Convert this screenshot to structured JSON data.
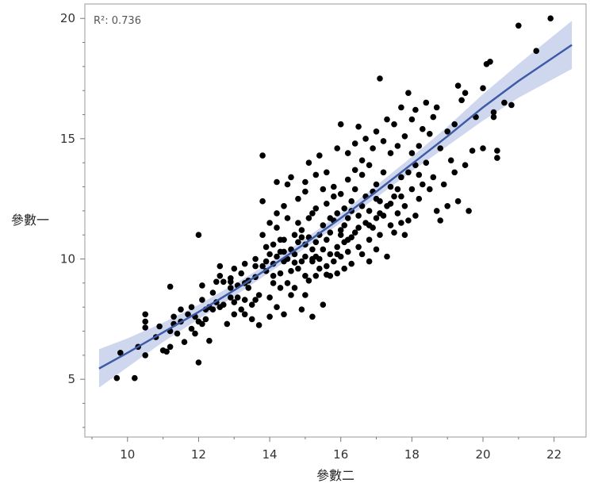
{
  "chart_data": {
    "type": "scatter",
    "title": "",
    "xlabel": "參數二",
    "ylabel": "參數一",
    "xlim": [
      8.8,
      22.9
    ],
    "ylim": [
      2.6,
      20.6
    ],
    "xticks": [
      10,
      12,
      14,
      16,
      18,
      20,
      22
    ],
    "yticks": [
      5,
      10,
      15,
      20
    ],
    "grid": false,
    "legend": "none",
    "annotation": "R²: 0.736",
    "colors": {
      "points": "#000000",
      "fit_line": "#3d5ba6",
      "band": "#c5d0ea",
      "frame": "#999999"
    },
    "fit": {
      "x": [
        9.2,
        10,
        11,
        12,
        13,
        14,
        15,
        16,
        17,
        18,
        19,
        20,
        21,
        22.5
      ],
      "y": [
        5.45,
        6.1,
        6.95,
        7.8,
        8.7,
        9.65,
        10.65,
        11.7,
        12.8,
        13.95,
        15.1,
        16.3,
        17.4,
        18.9
      ],
      "lower": [
        4.65,
        5.5,
        6.55,
        7.5,
        8.45,
        9.45,
        10.45,
        11.5,
        12.55,
        13.65,
        14.7,
        15.75,
        16.7,
        17.9
      ],
      "upper": [
        6.25,
        6.7,
        7.35,
        8.1,
        8.95,
        9.85,
        10.85,
        11.9,
        13.05,
        14.25,
        15.5,
        16.85,
        18.1,
        19.9
      ]
    },
    "points": [
      [
        9.7,
        5.05
      ],
      [
        10.2,
        5.05
      ],
      [
        9.8,
        6.1
      ],
      [
        10.3,
        6.35
      ],
      [
        10.5,
        6.0
      ],
      [
        10.5,
        7.15
      ],
      [
        10.5,
        7.4
      ],
      [
        10.5,
        7.7
      ],
      [
        10.8,
        6.75
      ],
      [
        10.9,
        7.2
      ],
      [
        11.0,
        6.2
      ],
      [
        11.1,
        6.15
      ],
      [
        11.2,
        7.0
      ],
      [
        11.2,
        6.35
      ],
      [
        11.3,
        7.6
      ],
      [
        11.3,
        7.3
      ],
      [
        11.2,
        8.85
      ],
      [
        11.4,
        6.9
      ],
      [
        11.5,
        7.4
      ],
      [
        11.5,
        7.9
      ],
      [
        11.6,
        6.55
      ],
      [
        11.7,
        7.7
      ],
      [
        11.8,
        7.1
      ],
      [
        11.8,
        8.0
      ],
      [
        11.9,
        6.9
      ],
      [
        12.0,
        7.4
      ],
      [
        12.0,
        5.7
      ],
      [
        12.0,
        11.0
      ],
      [
        12.1,
        7.3
      ],
      [
        12.1,
        8.3
      ],
      [
        12.1,
        8.9
      ],
      [
        12.2,
        7.5
      ],
      [
        12.3,
        6.6
      ],
      [
        12.3,
        8.0
      ],
      [
        12.4,
        7.9
      ],
      [
        12.4,
        8.6
      ],
      [
        12.5,
        9.05
      ],
      [
        12.5,
        8.2
      ],
      [
        12.6,
        9.3
      ],
      [
        12.6,
        9.7
      ],
      [
        12.7,
        8.1
      ],
      [
        12.7,
        9.05
      ],
      [
        12.8,
        7.3
      ],
      [
        12.9,
        8.4
      ],
      [
        12.9,
        8.8
      ],
      [
        12.9,
        9.2
      ],
      [
        13.0,
        8.2
      ],
      [
        13.0,
        9.6
      ],
      [
        13.0,
        7.7
      ],
      [
        13.1,
        8.9
      ],
      [
        13.1,
        8.4
      ],
      [
        13.2,
        7.9
      ],
      [
        13.2,
        9.4
      ],
      [
        13.3,
        9.8
      ],
      [
        13.3,
        7.7
      ],
      [
        13.3,
        8.3
      ],
      [
        13.4,
        8.8
      ],
      [
        13.4,
        9.1
      ],
      [
        13.5,
        7.5
      ],
      [
        13.5,
        8.1
      ],
      [
        13.6,
        9.25
      ],
      [
        13.6,
        10.0
      ],
      [
        13.6,
        9.7
      ],
      [
        13.7,
        8.5
      ],
      [
        13.7,
        7.25
      ],
      [
        13.8,
        9.7
      ],
      [
        13.8,
        11.0
      ],
      [
        13.8,
        12.4
      ],
      [
        13.8,
        14.3
      ],
      [
        13.9,
        10.5
      ],
      [
        13.9,
        9.5
      ],
      [
        14.0,
        8.4
      ],
      [
        14.0,
        10.2
      ],
      [
        14.0,
        11.5
      ],
      [
        14.0,
        7.6
      ],
      [
        14.1,
        9.0
      ],
      [
        14.1,
        9.8
      ],
      [
        14.1,
        10.6
      ],
      [
        14.2,
        8.0
      ],
      [
        14.2,
        10.1
      ],
      [
        14.2,
        11.9
      ],
      [
        14.2,
        13.2
      ],
      [
        14.2,
        11.3
      ],
      [
        14.3,
        9.4
      ],
      [
        14.3,
        10.3
      ],
      [
        14.3,
        8.8
      ],
      [
        14.4,
        9.9
      ],
      [
        14.4,
        10.8
      ],
      [
        14.4,
        12.2
      ],
      [
        14.4,
        7.7
      ],
      [
        14.5,
        9.0
      ],
      [
        14.5,
        10.0
      ],
      [
        14.5,
        11.7
      ],
      [
        14.5,
        13.1
      ],
      [
        14.6,
        8.5
      ],
      [
        14.6,
        10.4
      ],
      [
        14.6,
        9.5
      ],
      [
        14.6,
        13.4
      ],
      [
        14.7,
        10.2
      ],
      [
        14.7,
        11.0
      ],
      [
        14.7,
        8.8
      ],
      [
        14.8,
        9.6
      ],
      [
        14.8,
        10.7
      ],
      [
        14.8,
        12.5
      ],
      [
        14.8,
        11.5
      ],
      [
        14.9,
        7.9
      ],
      [
        14.9,
        9.9
      ],
      [
        14.9,
        11.2
      ],
      [
        15.0,
        10.1
      ],
      [
        15.0,
        10.6
      ],
      [
        15.0,
        8.5
      ],
      [
        15.0,
        12.8
      ],
      [
        15.0,
        13.2
      ],
      [
        15.1,
        9.1
      ],
      [
        15.1,
        10.9
      ],
      [
        15.1,
        11.7
      ],
      [
        15.1,
        14.0
      ],
      [
        15.2,
        9.9
      ],
      [
        15.2,
        10.4
      ],
      [
        15.2,
        11.9
      ],
      [
        15.2,
        7.6
      ],
      [
        15.3,
        9.3
      ],
      [
        15.3,
        10.7
      ],
      [
        15.3,
        12.1
      ],
      [
        15.3,
        13.5
      ],
      [
        15.4,
        10.0
      ],
      [
        15.4,
        11.0
      ],
      [
        15.4,
        9.6
      ],
      [
        15.4,
        14.3
      ],
      [
        15.5,
        10.4
      ],
      [
        15.5,
        11.4
      ],
      [
        15.5,
        12.9
      ],
      [
        15.5,
        8.1
      ],
      [
        15.6,
        9.7
      ],
      [
        15.6,
        10.8
      ],
      [
        15.6,
        12.3
      ],
      [
        15.6,
        13.6
      ],
      [
        15.7,
        9.3
      ],
      [
        15.7,
        11.1
      ],
      [
        15.7,
        10.2
      ],
      [
        15.8,
        9.9
      ],
      [
        15.8,
        11.6
      ],
      [
        15.8,
        12.6
      ],
      [
        15.8,
        13.0
      ],
      [
        15.9,
        10.5
      ],
      [
        15.9,
        9.4
      ],
      [
        15.9,
        11.9
      ],
      [
        15.9,
        14.6
      ],
      [
        16.0,
        10.1
      ],
      [
        16.0,
        11.2
      ],
      [
        16.0,
        12.7
      ],
      [
        16.0,
        15.6
      ],
      [
        16.1,
        9.6
      ],
      [
        16.1,
        11.4
      ],
      [
        16.1,
        12.1
      ],
      [
        16.1,
        10.7
      ],
      [
        16.2,
        10.3
      ],
      [
        16.2,
        11.7
      ],
      [
        16.2,
        13.3
      ],
      [
        16.2,
        14.4
      ],
      [
        16.3,
        10.9
      ],
      [
        16.3,
        12.4
      ],
      [
        16.3,
        9.8
      ],
      [
        16.4,
        11.1
      ],
      [
        16.4,
        12.9
      ],
      [
        16.4,
        14.8
      ],
      [
        16.4,
        13.7
      ],
      [
        16.5,
        10.5
      ],
      [
        16.5,
        11.8
      ],
      [
        16.5,
        15.5
      ],
      [
        16.6,
        12.2
      ],
      [
        16.6,
        10.2
      ],
      [
        16.6,
        13.5
      ],
      [
        16.6,
        14.1
      ],
      [
        16.7,
        11.5
      ],
      [
        16.7,
        12.6
      ],
      [
        16.7,
        15.0
      ],
      [
        16.8,
        10.8
      ],
      [
        16.8,
        12.0
      ],
      [
        16.8,
        13.9
      ],
      [
        16.8,
        9.9
      ],
      [
        16.9,
        11.3
      ],
      [
        16.9,
        12.8
      ],
      [
        16.9,
        14.6
      ],
      [
        17.0,
        11.7
      ],
      [
        17.0,
        10.4
      ],
      [
        17.0,
        13.1
      ],
      [
        17.0,
        15.3
      ],
      [
        17.1,
        11.0
      ],
      [
        17.1,
        12.4
      ],
      [
        17.1,
        17.5
      ],
      [
        17.2,
        11.8
      ],
      [
        17.2,
        13.6
      ],
      [
        17.2,
        14.9
      ],
      [
        17.3,
        10.1
      ],
      [
        17.3,
        12.2
      ],
      [
        17.3,
        15.8
      ],
      [
        17.4,
        11.4
      ],
      [
        17.4,
        13.0
      ],
      [
        17.4,
        14.4
      ],
      [
        17.5,
        12.6
      ],
      [
        17.5,
        11.1
      ],
      [
        17.5,
        15.6
      ],
      [
        17.6,
        11.9
      ],
      [
        17.6,
        12.9
      ],
      [
        17.6,
        14.7
      ],
      [
        17.7,
        13.4
      ],
      [
        17.7,
        11.5
      ],
      [
        17.7,
        16.3
      ],
      [
        17.8,
        12.2
      ],
      [
        17.8,
        11.0
      ],
      [
        17.8,
        15.1
      ],
      [
        17.9,
        13.6
      ],
      [
        17.9,
        16.9
      ],
      [
        17.9,
        11.6
      ],
      [
        18.0,
        12.9
      ],
      [
        18.0,
        14.4
      ],
      [
        18.0,
        15.8
      ],
      [
        18.1,
        11.8
      ],
      [
        18.1,
        13.9
      ],
      [
        18.1,
        16.2
      ],
      [
        18.2,
        14.7
      ],
      [
        18.2,
        12.5
      ],
      [
        18.3,
        15.4
      ],
      [
        18.3,
        13.1
      ],
      [
        18.4,
        14.0
      ],
      [
        18.4,
        16.5
      ],
      [
        18.5,
        15.2
      ],
      [
        18.5,
        12.9
      ],
      [
        18.6,
        15.9
      ],
      [
        18.6,
        13.4
      ],
      [
        18.7,
        16.3
      ],
      [
        18.7,
        12.0
      ],
      [
        18.8,
        11.6
      ],
      [
        18.8,
        14.6
      ],
      [
        18.9,
        13.1
      ],
      [
        19.0,
        15.3
      ],
      [
        19.0,
        12.2
      ],
      [
        19.1,
        14.1
      ],
      [
        19.2,
        13.6
      ],
      [
        19.2,
        15.6
      ],
      [
        19.3,
        12.4
      ],
      [
        19.3,
        17.2
      ],
      [
        19.4,
        16.6
      ],
      [
        19.5,
        16.9
      ],
      [
        19.5,
        13.9
      ],
      [
        19.6,
        12.0
      ],
      [
        19.7,
        14.5
      ],
      [
        19.8,
        15.9
      ],
      [
        20.0,
        14.6
      ],
      [
        20.0,
        17.1
      ],
      [
        20.1,
        18.1
      ],
      [
        20.2,
        18.2
      ],
      [
        20.3,
        15.9
      ],
      [
        20.3,
        16.1
      ],
      [
        20.4,
        14.2
      ],
      [
        20.4,
        14.5
      ],
      [
        20.6,
        16.5
      ],
      [
        20.8,
        16.4
      ],
      [
        21.0,
        19.7
      ],
      [
        21.5,
        18.65
      ],
      [
        21.9,
        20.0
      ],
      [
        12.9,
        9.05
      ],
      [
        13.6,
        8.3
      ],
      [
        14.1,
        9.3
      ],
      [
        14.4,
        10.3
      ],
      [
        14.7,
        9.85
      ],
      [
        15.0,
        9.3
      ],
      [
        15.3,
        10.1
      ],
      [
        15.6,
        9.35
      ],
      [
        15.9,
        10.2
      ],
      [
        16.2,
        10.8
      ],
      [
        16.5,
        11.3
      ],
      [
        16.8,
        11.4
      ],
      [
        17.1,
        11.9
      ],
      [
        17.4,
        12.3
      ],
      [
        13.3,
        9.0
      ],
      [
        12.6,
        8.0
      ],
      [
        12.2,
        7.9
      ],
      [
        11.9,
        7.6
      ],
      [
        14.9,
        10.9
      ],
      [
        15.7,
        11.7
      ],
      [
        16.3,
        12.0
      ],
      [
        17.0,
        12.5
      ],
      [
        14.3,
        10.8
      ],
      [
        15.2,
        10.0
      ],
      [
        16.0,
        11.0
      ],
      [
        13.9,
        9.9
      ],
      [
        17.7,
        12.6
      ],
      [
        18.2,
        13.5
      ]
    ]
  }
}
